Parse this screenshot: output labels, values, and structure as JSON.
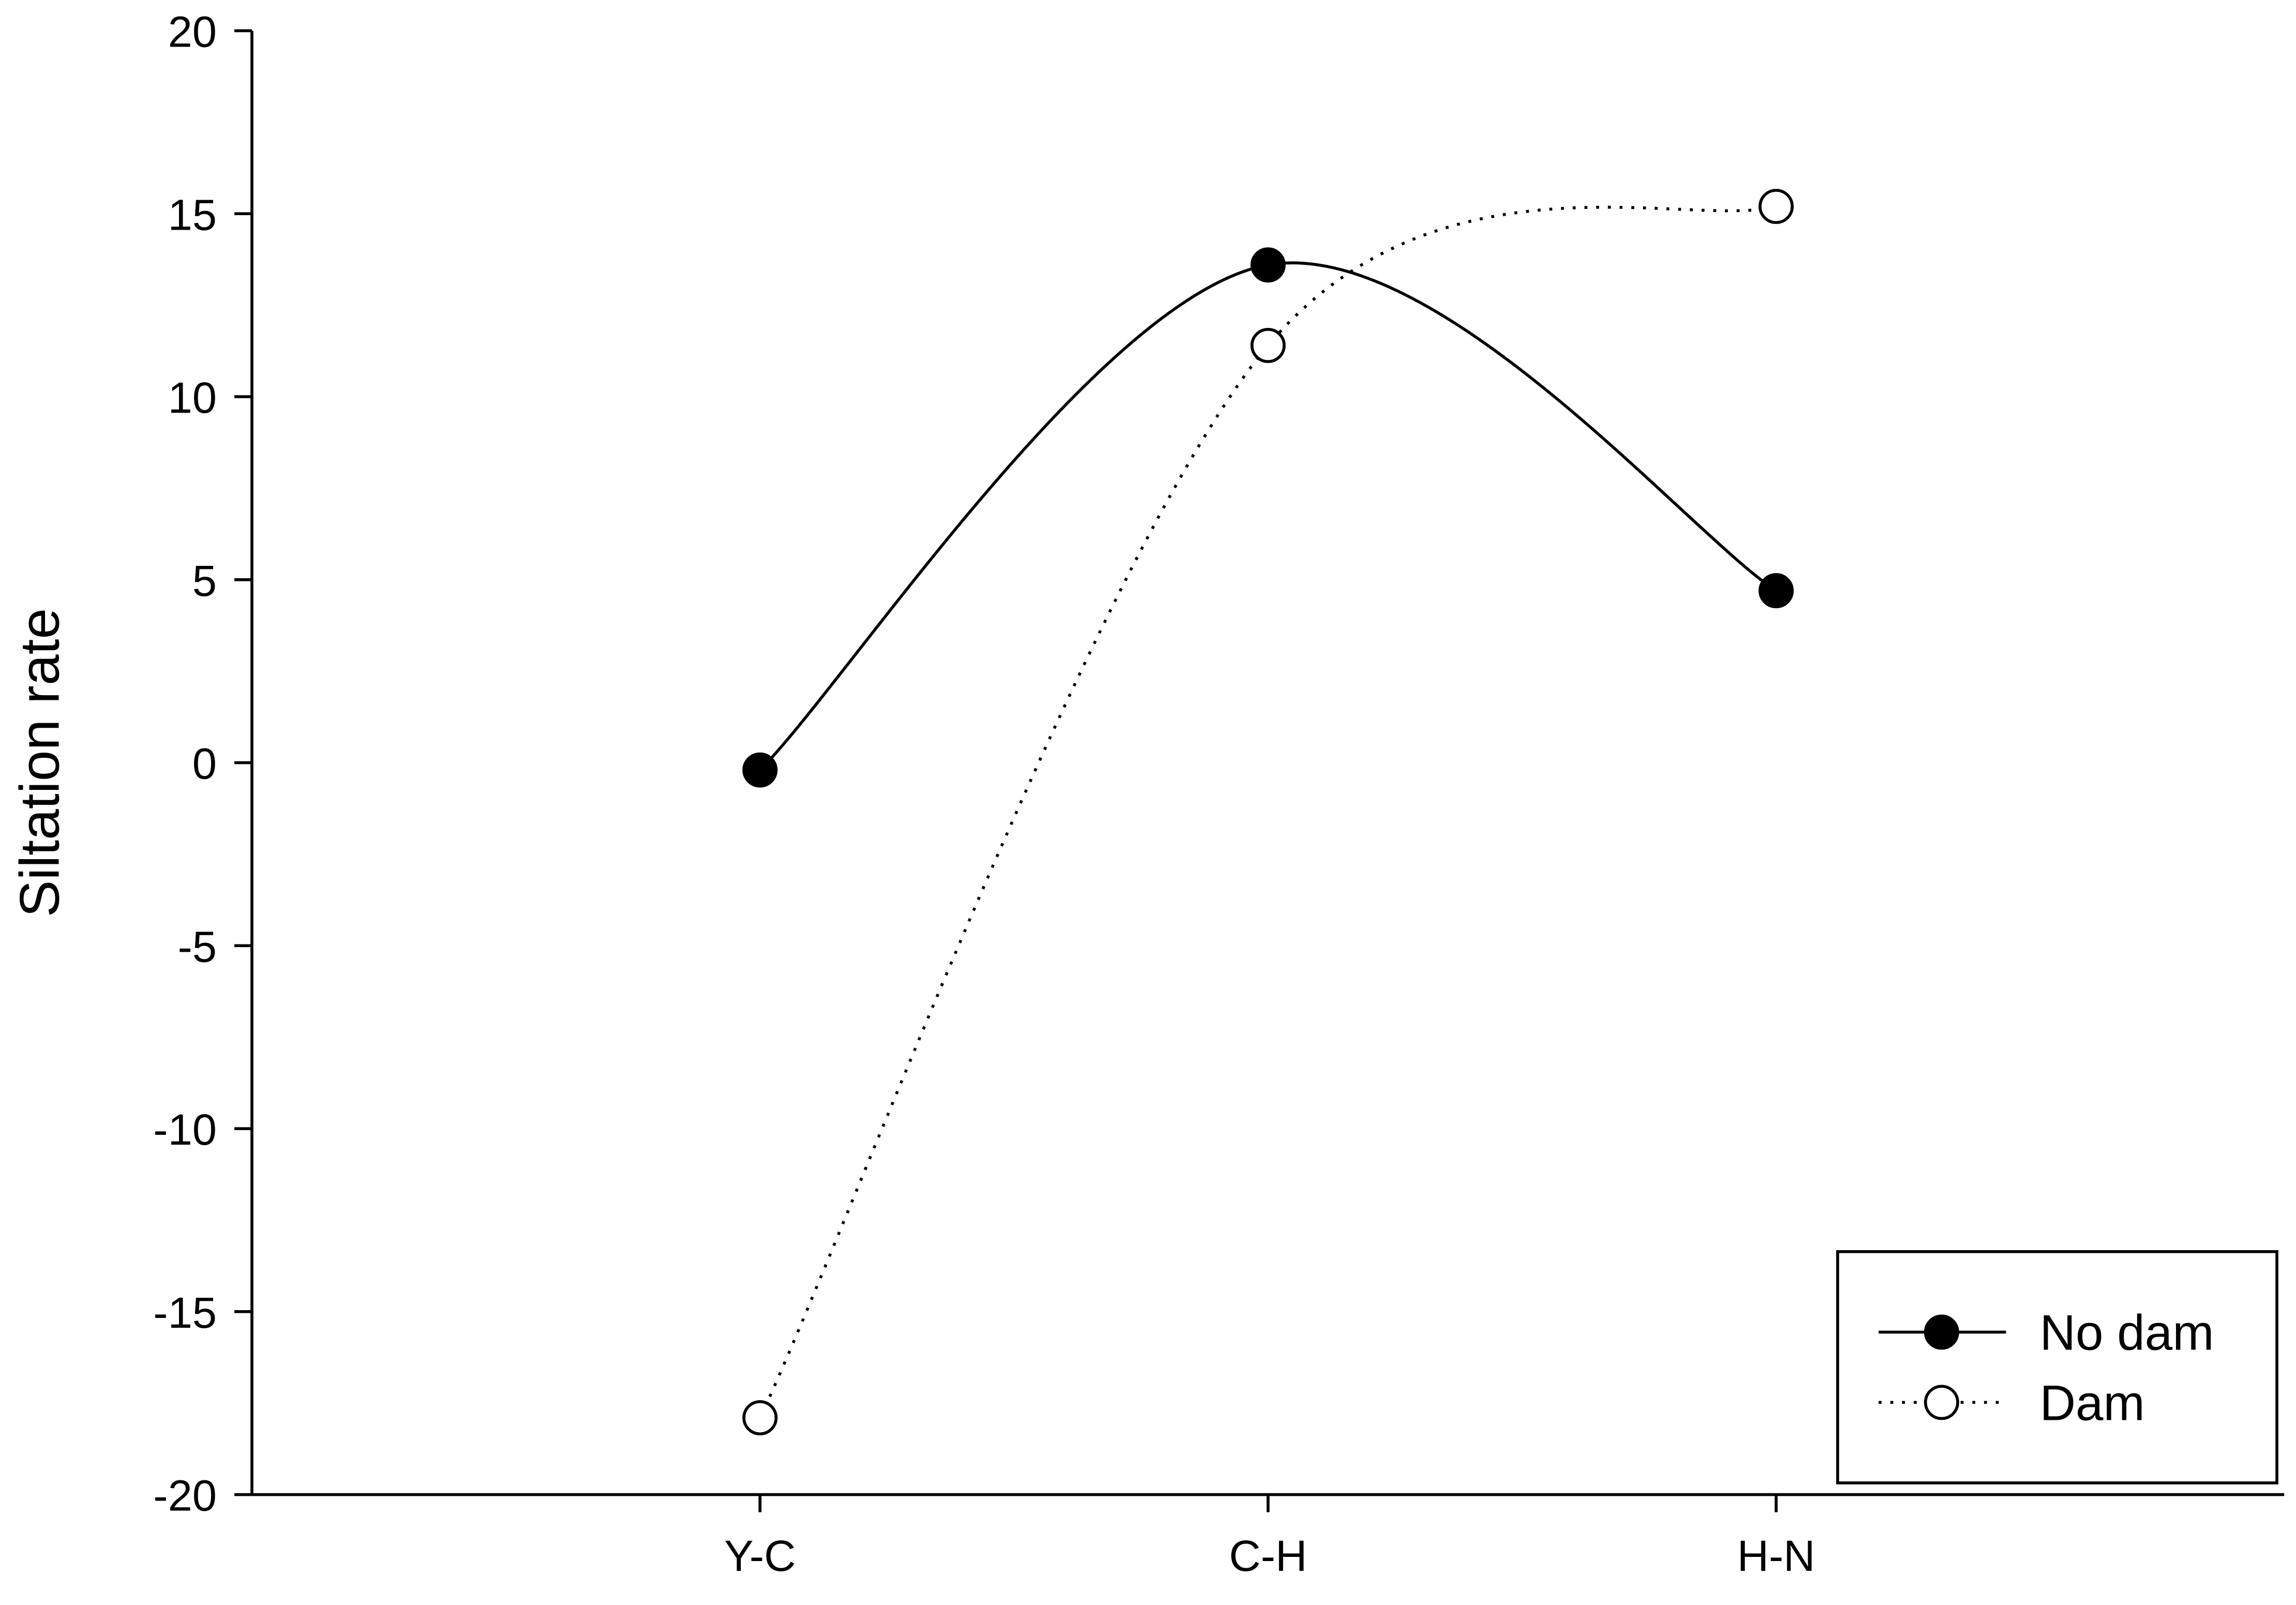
{
  "chart_data": {
    "type": "line",
    "ylabel": "Siltation rate",
    "categories": [
      "Y-C",
      "C-H",
      "H-N"
    ],
    "series": [
      {
        "name": "No dam",
        "color": "#000000",
        "marker_face": "#000000",
        "linestyle": "solid",
        "values": [
          -0.2,
          13.6,
          4.7
        ]
      },
      {
        "name": "Dam",
        "color": "#000000",
        "marker_face": "#ffffff",
        "linestyle": "dotted",
        "values": [
          -17.9,
          11.4,
          15.2
        ]
      }
    ],
    "ylim": [
      -20,
      20
    ],
    "yticks": [
      -20,
      -15,
      -10,
      -5,
      0,
      5,
      10,
      15,
      20
    ],
    "grid": false,
    "smooth": true,
    "legend": "lower right"
  }
}
